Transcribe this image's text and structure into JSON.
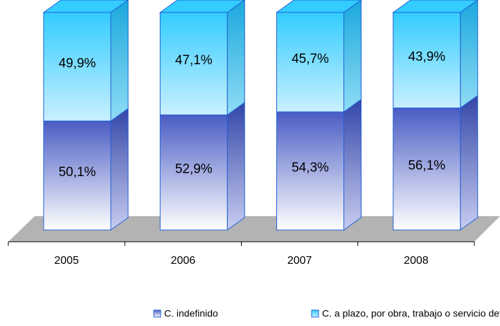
{
  "chart_data": {
    "type": "bar",
    "stacked": true,
    "categories": [
      "2005",
      "2006",
      "2007",
      "2008"
    ],
    "series": [
      {
        "name": "C. indefinido",
        "color": "#4a5cc4",
        "values": [
          50.1,
          52.9,
          54.3,
          56.1
        ],
        "value_labels": [
          "50,1%",
          "52,9%",
          "54,3%",
          "56,1%"
        ]
      },
      {
        "name": "C. a plazo, por obra, trabajo o servicio determinado",
        "color": "#33ccff",
        "values": [
          49.9,
          47.1,
          45.7,
          43.9
        ],
        "value_labels": [
          "49,9%",
          "47,1%",
          "45,7%",
          "43,9%"
        ]
      }
    ]
  }
}
